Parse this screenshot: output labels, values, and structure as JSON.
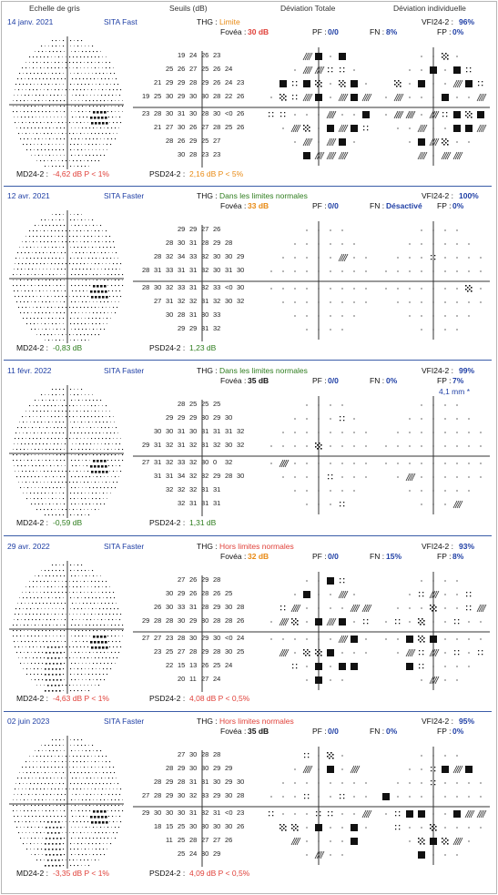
{
  "headers": {
    "grayscale": "Echelle de gris",
    "thresholds": "Seuils (dB)",
    "total_dev": "Déviation Totale",
    "pattern_dev": "Déviation individuelle"
  },
  "exams": [
    {
      "date": "14 janv. 2021",
      "strategy": "SITA Fast",
      "thg_label": "THG :",
      "thg_value": "Limite",
      "thg_color": "orange",
      "fovea_label": "Fovéa :",
      "fovea_value": "30 dB",
      "fovea_color": "red",
      "pf_label": "PF :",
      "pf_value": "0/0",
      "pf_color": "blue",
      "fn_label": "FN :",
      "fn_value": "8%",
      "fn_color": "blue",
      "vfi_label": "VFI24-2 :",
      "vfi_value": "96%",
      "fp_label": "FP :",
      "fp_value": "0%",
      "md_label": "MD24-2 :",
      "md_value": "-4,62 dB P < 1%",
      "md_color": "red",
      "psd_label": "PSD24-2 :",
      "psd_value": "2,16 dB P < 5%",
      "psd_color": "orange",
      "extra": "",
      "thresholds": [
        [
          "19",
          "24",
          "26",
          "23"
        ],
        [
          "25",
          "26",
          "27",
          "25",
          "26",
          "24"
        ],
        [
          "21",
          "29",
          "29",
          "28",
          "29",
          "26",
          "24",
          "23"
        ],
        [
          "19",
          "25",
          "30",
          "29",
          "30",
          "30",
          "28",
          "22",
          "26"
        ],
        [
          "23",
          "28",
          "30",
          "31",
          "30",
          "28",
          "30",
          "<0",
          "26"
        ],
        [
          "21",
          "27",
          "30",
          "26",
          "27",
          "28",
          "25",
          "26"
        ],
        [
          "28",
          "26",
          "29",
          "25",
          "27"
        ],
        [
          "30",
          "28",
          "23",
          "23"
        ]
      ]
    },
    {
      "date": "12 avr. 2021",
      "strategy": "SITA Faster",
      "thg_label": "THG :",
      "thg_value": "Dans les limites normales",
      "thg_color": "green",
      "fovea_label": "Fovéa :",
      "fovea_value": "33 dB",
      "fovea_color": "orange",
      "pf_label": "PF :",
      "pf_value": "0/0",
      "pf_color": "blue",
      "fn_label": "FN :",
      "fn_value": "Désactivé",
      "fn_color": "blue",
      "vfi_label": "VFI24-2 :",
      "vfi_value": "100%",
      "fp_label": "FP :",
      "fp_value": "0%",
      "md_label": "MD24-2 :",
      "md_value": "-0,83 dB",
      "md_color": "green",
      "psd_label": "PSD24-2 :",
      "psd_value": "1,23 dB",
      "psd_color": "green",
      "extra": "",
      "thresholds": [
        [
          "29",
          "29",
          "27",
          "26"
        ],
        [
          "28",
          "30",
          "31",
          "28",
          "29",
          "28"
        ],
        [
          "28",
          "32",
          "34",
          "33",
          "32",
          "30",
          "30",
          "29"
        ],
        [
          "28",
          "31",
          "33",
          "31",
          "31",
          "32",
          "30",
          "31",
          "30"
        ],
        [
          "28",
          "30",
          "32",
          "33",
          "31",
          "32",
          "33",
          "<0",
          "30"
        ],
        [
          "27",
          "31",
          "32",
          "32",
          "31",
          "32",
          "30",
          "32"
        ],
        [
          "30",
          "28",
          "31",
          "30",
          "33"
        ],
        [
          "29",
          "29",
          "31",
          "32"
        ]
      ]
    },
    {
      "date": "11 févr. 2022",
      "strategy": "SITA Faster",
      "thg_label": "THG :",
      "thg_value": "Dans les limites normales",
      "thg_color": "green",
      "fovea_label": "Fovéa :",
      "fovea_value": "35 dB",
      "fovea_color": "black",
      "pf_label": "PF :",
      "pf_value": "0/0",
      "pf_color": "blue",
      "fn_label": "FN :",
      "fn_value": "0%",
      "fn_color": "blue",
      "vfi_label": "VFI24-2 :",
      "vfi_value": "99%",
      "fp_label": "FP :",
      "fp_value": "7%",
      "md_label": "MD24-2 :",
      "md_value": "-0,59 dB",
      "md_color": "green",
      "psd_label": "PSD24-2 :",
      "psd_value": "1,31 dB",
      "psd_color": "green",
      "extra": "4,1 mm *",
      "thresholds": [
        [
          "28",
          "25",
          "25",
          "25"
        ],
        [
          "29",
          "29",
          "29",
          "30",
          "29",
          "30"
        ],
        [
          "30",
          "30",
          "31",
          "30",
          "31",
          "31",
          "31",
          "32"
        ],
        [
          "29",
          "31",
          "32",
          "31",
          "32",
          "31",
          "32",
          "30",
          "32"
        ],
        [
          "27",
          "31",
          "32",
          "33",
          "32",
          "30",
          "0",
          "32"
        ],
        [
          "31",
          "31",
          "34",
          "32",
          "32",
          "29",
          "28",
          "30"
        ],
        [
          "32",
          "32",
          "32",
          "31",
          "31"
        ],
        [
          "32",
          "31",
          "31",
          "31"
        ]
      ]
    },
    {
      "date": "29 avr. 2022",
      "strategy": "SITA Faster",
      "thg_label": "THG :",
      "thg_value": "Hors limites normales",
      "thg_color": "red",
      "fovea_label": "Fovéa :",
      "fovea_value": "32 dB",
      "fovea_color": "orange",
      "pf_label": "PF :",
      "pf_value": "0/0",
      "pf_color": "blue",
      "fn_label": "FN :",
      "fn_value": "15%",
      "fn_color": "blue",
      "vfi_label": "VFI24-2 :",
      "vfi_value": "93%",
      "fp_label": "FP :",
      "fp_value": "8%",
      "md_label": "MD24-2 :",
      "md_value": "-4,63 dB P < 1%",
      "md_color": "red",
      "psd_label": "PSD24-2 :",
      "psd_value": "4,08 dB P < 0,5%",
      "psd_color": "red",
      "extra": "",
      "thresholds": [
        [
          "27",
          "26",
          "29",
          "28"
        ],
        [
          "30",
          "29",
          "26",
          "28",
          "26",
          "25"
        ],
        [
          "26",
          "30",
          "33",
          "31",
          "28",
          "29",
          "30",
          "28"
        ],
        [
          "29",
          "28",
          "28",
          "30",
          "29",
          "30",
          "28",
          "28",
          "26"
        ],
        [
          "27",
          "27",
          "23",
          "28",
          "30",
          "29",
          "30",
          "<0",
          "24"
        ],
        [
          "23",
          "25",
          "27",
          "28",
          "29",
          "28",
          "30",
          "25"
        ],
        [
          "22",
          "15",
          "13",
          "26",
          "25",
          "24"
        ],
        [
          "20",
          "11",
          "27",
          "24"
        ]
      ]
    },
    {
      "date": "02 juin 2023",
      "strategy": "SITA Faster",
      "thg_label": "THG :",
      "thg_value": "Hors limites normales",
      "thg_color": "red",
      "fovea_label": "Fovéa :",
      "fovea_value": "35 dB",
      "fovea_color": "black",
      "pf_label": "PF :",
      "pf_value": "0/0",
      "pf_color": "blue",
      "fn_label": "FN :",
      "fn_value": "0%",
      "fn_color": "blue",
      "vfi_label": "VFI24-2 :",
      "vfi_value": "95%",
      "fp_label": "FP :",
      "fp_value": "0%",
      "md_label": "MD24-2 :",
      "md_value": "-3,35 dB P < 1%",
      "md_color": "red",
      "psd_label": "PSD24-2 :",
      "psd_value": "4,09 dB P < 0,5%",
      "psd_color": "red",
      "extra": "",
      "thresholds": [
        [
          "27",
          "30",
          "28",
          "28"
        ],
        [
          "28",
          "29",
          "30",
          "30",
          "29",
          "29"
        ],
        [
          "28",
          "29",
          "28",
          "31",
          "31",
          "30",
          "29",
          "30"
        ],
        [
          "27",
          "28",
          "29",
          "30",
          "32",
          "33",
          "29",
          "30",
          "28"
        ],
        [
          "29",
          "30",
          "30",
          "30",
          "31",
          "32",
          "31",
          "<0",
          "23"
        ],
        [
          "18",
          "15",
          "25",
          "30",
          "30",
          "30",
          "30",
          "26"
        ],
        [
          "11",
          "25",
          "28",
          "27",
          "27",
          "26"
        ],
        [
          "25",
          "24",
          "30",
          "29"
        ]
      ]
    }
  ]
}
